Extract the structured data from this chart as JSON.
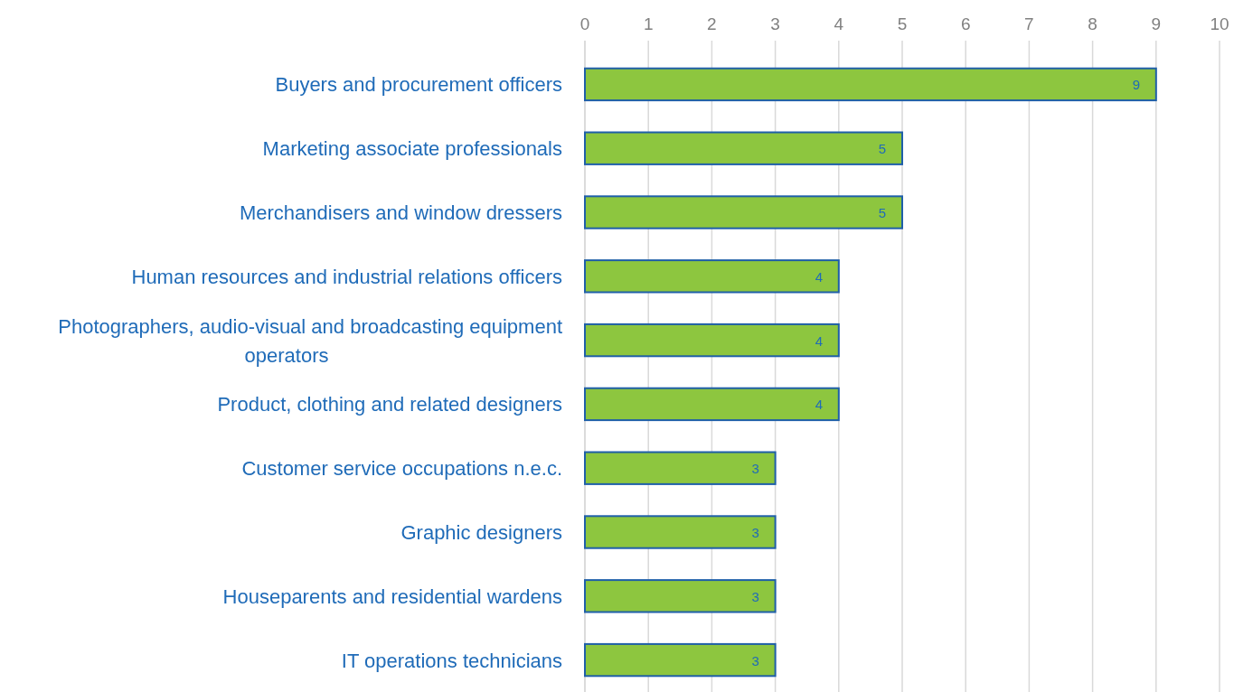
{
  "chart_data": {
    "type": "bar",
    "orientation": "horizontal",
    "categories": [
      "Buyers and procurement officers",
      "Marketing associate professionals",
      "Merchandisers and window dressers",
      "Human resources and industrial relations officers",
      "Photographers, audio-visual and broadcasting equipment operators",
      "Product, clothing and related designers",
      "Customer service occupations n.e.c.",
      "Graphic designers",
      "Houseparents and residential wardens",
      "IT operations technicians"
    ],
    "values": [
      9,
      5,
      5,
      4,
      4,
      4,
      3,
      3,
      3,
      3
    ],
    "color": "#8dc63f",
    "xlim": [
      0,
      10
    ],
    "xticks": [
      0,
      1,
      2,
      3,
      4,
      5,
      6,
      7,
      8,
      9,
      10
    ],
    "grid": "x",
    "data_labels": true
  }
}
